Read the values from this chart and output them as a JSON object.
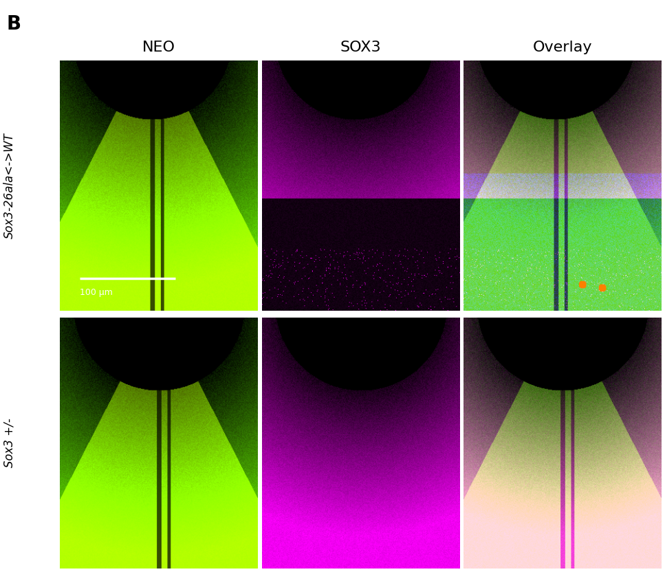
{
  "title_letter": "B",
  "col_labels": [
    "NEO",
    "SOX3",
    "Overlay"
  ],
  "row_labels": [
    "Sox3-26ala<->WT",
    "Sox3 +/-"
  ],
  "background_color": "#ffffff",
  "label_fontsize": 16,
  "letter_fontsize": 20,
  "scale_bar_text": "100 μm",
  "figure_width": 9.67,
  "figure_height": 8.35
}
